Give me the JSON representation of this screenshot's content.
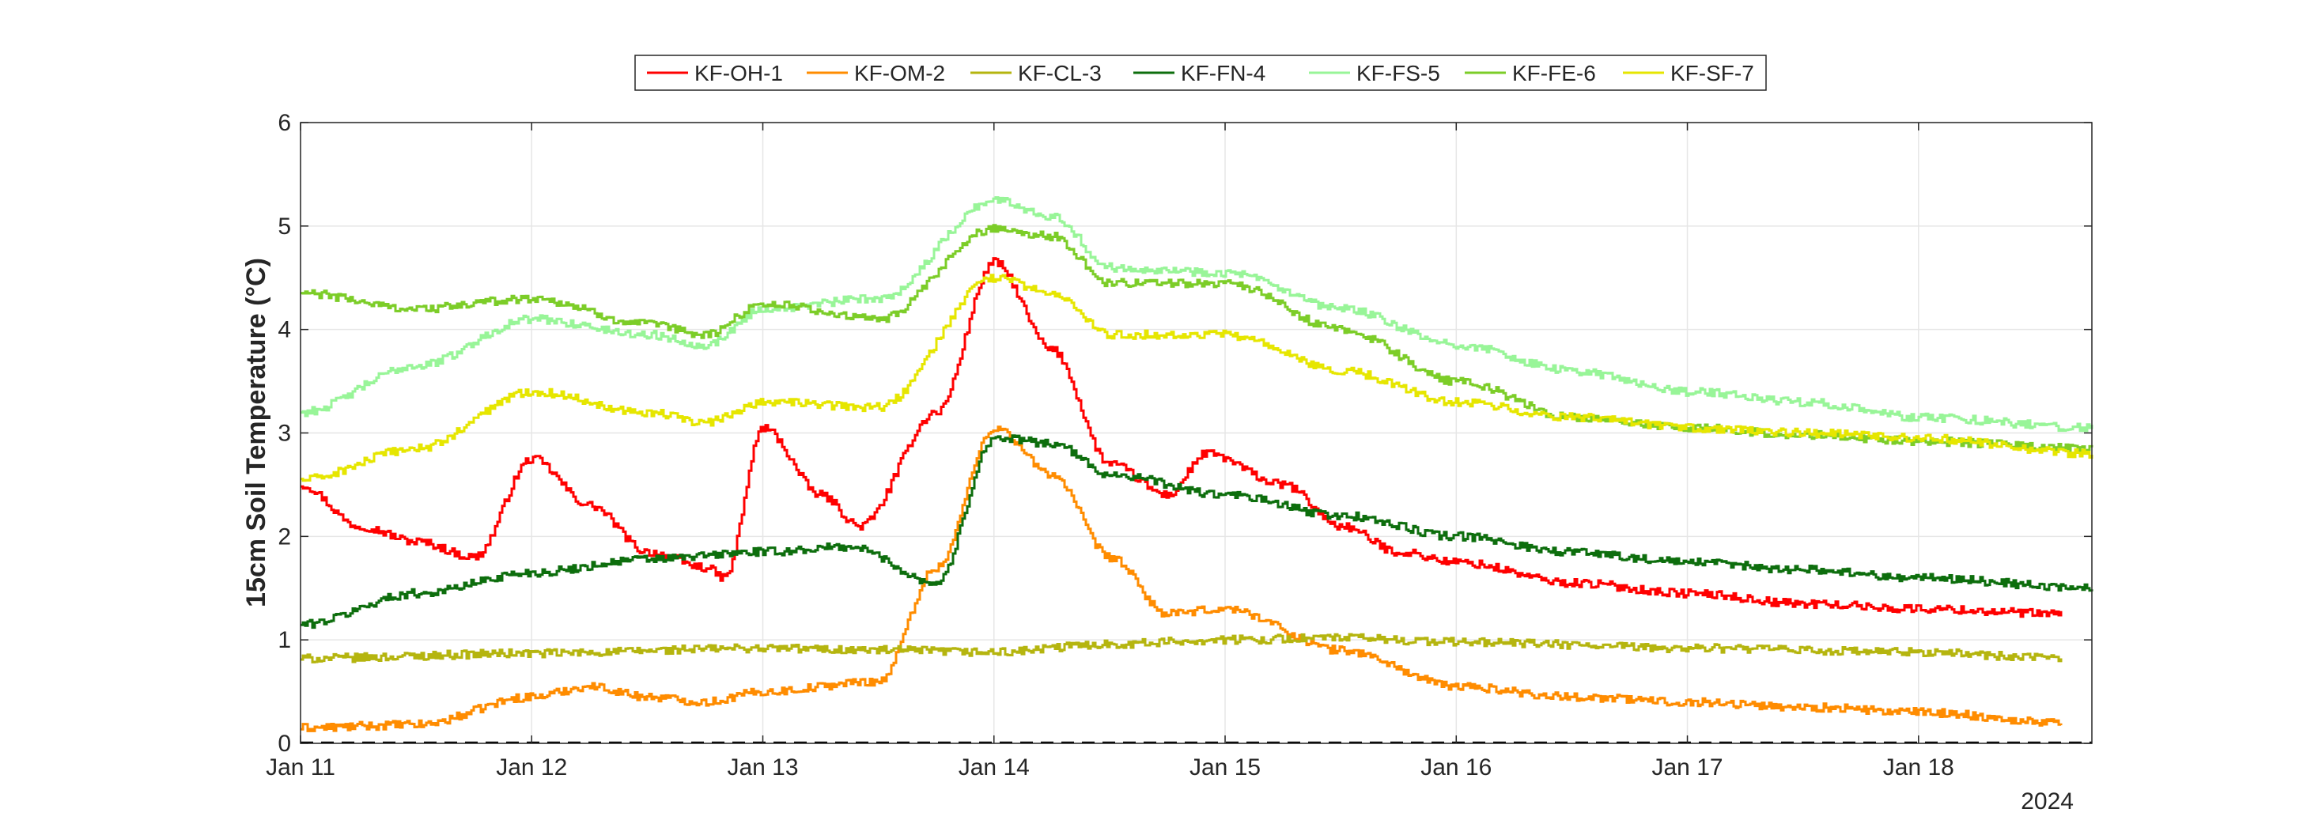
{
  "chart_data": {
    "type": "line",
    "title": "",
    "xlabel": "",
    "ylabel": "15cm Soil Temperature (°C)",
    "year_label": "2024",
    "x_ticks": [
      "Jan 11",
      "Jan 12",
      "Jan 13",
      "Jan 14",
      "Jan 15",
      "Jan 16",
      "Jan 17",
      "Jan 18"
    ],
    "xlim": [
      "2024-01-11 00:00",
      "2024-01-18 18:00"
    ],
    "ylim": [
      0,
      6
    ],
    "y_ticks": [
      "0",
      "1",
      "2",
      "3",
      "4",
      "5",
      "6"
    ],
    "grid": true,
    "zero_line": "dashed",
    "legend_position": "top-center",
    "series": [
      {
        "name": "KF-OH-1",
        "color": "#ff0000",
        "x": [
          "2024-01-11 00:00",
          "2024-01-11 06:00",
          "2024-01-11 12:00",
          "2024-01-11 18:00",
          "2024-01-12 00:00",
          "2024-01-12 06:00",
          "2024-01-12 12:00",
          "2024-01-12 18:00",
          "2024-01-12 20:00",
          "2024-01-13 00:00",
          "2024-01-13 06:00",
          "2024-01-13 10:00",
          "2024-01-13 18:00",
          "2024-01-14 00:00",
          "2024-01-14 06:00",
          "2024-01-14 12:00",
          "2024-01-14 18:00",
          "2024-01-14 22:00",
          "2024-01-15 06:00",
          "2024-01-15 12:00",
          "2024-01-15 18:00",
          "2024-01-16 00:00",
          "2024-01-16 12:00",
          "2024-01-17 00:00",
          "2024-01-17 12:00",
          "2024-01-18 00:00",
          "2024-01-18 15:00"
        ],
        "y": [
          2.5,
          2.1,
          1.95,
          1.8,
          2.75,
          2.3,
          1.85,
          1.7,
          1.6,
          3.05,
          2.4,
          2.1,
          3.2,
          4.65,
          3.8,
          2.7,
          2.4,
          2.8,
          2.5,
          2.1,
          1.85,
          1.75,
          1.55,
          1.45,
          1.35,
          1.3,
          1.25
        ]
      },
      {
        "name": "KF-OM-2",
        "color": "#ff8c00",
        "x": [
          "2024-01-11 00:00",
          "2024-01-11 12:00",
          "2024-01-12 00:00",
          "2024-01-12 06:00",
          "2024-01-12 12:00",
          "2024-01-12 18:00",
          "2024-01-13 00:00",
          "2024-01-13 12:00",
          "2024-01-13 18:00",
          "2024-01-14 00:00",
          "2024-01-14 06:00",
          "2024-01-14 12:00",
          "2024-01-14 18:00",
          "2024-01-15 00:00",
          "2024-01-15 12:00",
          "2024-01-16 00:00",
          "2024-01-16 12:00",
          "2024-01-17 00:00",
          "2024-01-17 12:00",
          "2024-01-18 00:00",
          "2024-01-18 15:00"
        ],
        "y": [
          0.15,
          0.18,
          0.45,
          0.55,
          0.45,
          0.4,
          0.5,
          0.6,
          1.7,
          3.05,
          2.6,
          1.8,
          1.25,
          1.3,
          0.9,
          0.55,
          0.45,
          0.4,
          0.35,
          0.3,
          0.2
        ]
      },
      {
        "name": "KF-CL-3",
        "color": "#b5b50f",
        "x": [
          "2024-01-11 00:00",
          "2024-01-12 00:00",
          "2024-01-13 00:00",
          "2024-01-13 12:00",
          "2024-01-14 00:00",
          "2024-01-14 12:00",
          "2024-01-15 00:00",
          "2024-01-15 12:00",
          "2024-01-16 00:00",
          "2024-01-17 00:00",
          "2024-01-18 00:00",
          "2024-01-18 15:00"
        ],
        "y": [
          0.82,
          0.87,
          0.92,
          0.9,
          0.88,
          0.96,
          1.0,
          1.02,
          0.98,
          0.92,
          0.88,
          0.82
        ]
      },
      {
        "name": "KF-FN-4",
        "color": "#0d6e0d",
        "x": [
          "2024-01-11 00:00",
          "2024-01-11 12:00",
          "2024-01-12 00:00",
          "2024-01-12 12:00",
          "2024-01-13 00:00",
          "2024-01-13 09:00",
          "2024-01-13 18:00",
          "2024-01-14 00:00",
          "2024-01-14 06:00",
          "2024-01-14 12:00",
          "2024-01-15 00:00",
          "2024-01-15 12:00",
          "2024-01-16 00:00",
          "2024-01-16 12:00",
          "2024-01-17 00:00",
          "2024-01-17 12:00",
          "2024-01-18 00:00",
          "2024-01-18 18:00"
        ],
        "y": [
          1.15,
          1.45,
          1.65,
          1.78,
          1.85,
          1.9,
          1.55,
          2.95,
          2.9,
          2.6,
          2.4,
          2.2,
          2.0,
          1.85,
          1.75,
          1.68,
          1.6,
          1.5
        ]
      },
      {
        "name": "KF-FS-5",
        "color": "#98f598",
        "x": [
          "2024-01-11 00:00",
          "2024-01-11 12:00",
          "2024-01-12 00:00",
          "2024-01-12 12:00",
          "2024-01-12 18:00",
          "2024-01-13 00:00",
          "2024-01-13 12:00",
          "2024-01-14 00:00",
          "2024-01-14 06:00",
          "2024-01-14 12:00",
          "2024-01-15 00:00",
          "2024-01-15 12:00",
          "2024-01-16 00:00",
          "2024-01-16 12:00",
          "2024-01-17 00:00",
          "2024-01-17 12:00",
          "2024-01-18 00:00",
          "2024-01-18 18:00"
        ],
        "y": [
          3.2,
          3.65,
          4.1,
          3.95,
          3.85,
          4.2,
          4.3,
          5.25,
          5.1,
          4.6,
          4.55,
          4.2,
          3.85,
          3.6,
          3.4,
          3.3,
          3.15,
          3.05
        ]
      },
      {
        "name": "KF-FE-6",
        "color": "#7ccd28",
        "x": [
          "2024-01-11 00:00",
          "2024-01-11 12:00",
          "2024-01-12 00:00",
          "2024-01-12 12:00",
          "2024-01-12 18:00",
          "2024-01-13 00:00",
          "2024-01-13 12:00",
          "2024-01-14 00:00",
          "2024-01-14 06:00",
          "2024-01-14 12:00",
          "2024-01-15 00:00",
          "2024-01-15 12:00",
          "2024-01-16 00:00",
          "2024-01-16 12:00",
          "2024-01-17 00:00",
          "2024-01-17 12:00",
          "2024-01-18 00:00",
          "2024-01-18 18:00"
        ],
        "y": [
          4.35,
          4.2,
          4.3,
          4.05,
          3.95,
          4.25,
          4.1,
          4.98,
          4.9,
          4.45,
          4.45,
          4.0,
          3.5,
          3.15,
          3.05,
          2.98,
          2.92,
          2.85
        ]
      },
      {
        "name": "KF-SF-7",
        "color": "#e6e600",
        "x": [
          "2024-01-11 00:00",
          "2024-01-11 12:00",
          "2024-01-12 00:00",
          "2024-01-12 12:00",
          "2024-01-12 18:00",
          "2024-01-13 00:00",
          "2024-01-13 12:00",
          "2024-01-14 00:00",
          "2024-01-14 06:00",
          "2024-01-14 12:00",
          "2024-01-15 00:00",
          "2024-01-15 12:00",
          "2024-01-16 00:00",
          "2024-01-16 12:00",
          "2024-01-17 00:00",
          "2024-01-17 12:00",
          "2024-01-18 00:00",
          "2024-01-18 18:00"
        ],
        "y": [
          2.55,
          2.85,
          3.4,
          3.2,
          3.1,
          3.3,
          3.25,
          4.5,
          4.35,
          3.95,
          3.95,
          3.6,
          3.3,
          3.15,
          3.05,
          3.0,
          2.95,
          2.8
        ]
      }
    ]
  }
}
